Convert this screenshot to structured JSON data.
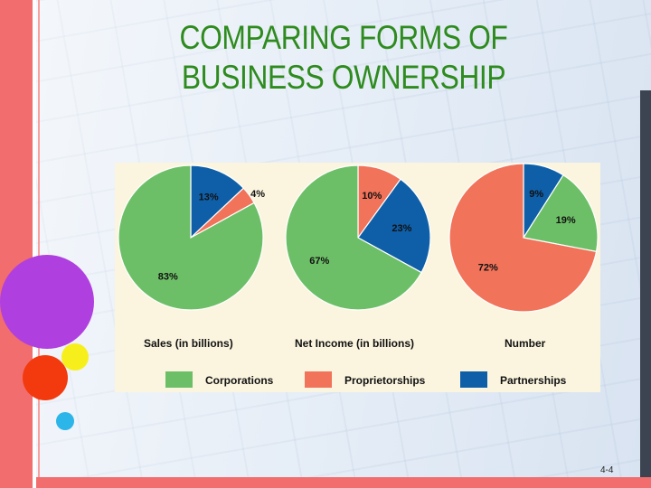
{
  "slide": {
    "title_line1": "COMPARING FORMS OF",
    "title_line2": "BUSINESS OWNERSHIP",
    "page_number": "4-4"
  },
  "colors": {
    "Corporations": "#6dbf67",
    "Proprietorships": "#f0735a",
    "Partnerships": "#0f5fa8",
    "chart_background": "#fbf5df",
    "title": "#2e8b1e"
  },
  "legend": [
    "Corporations",
    "Proprietorships",
    "Partnerships"
  ],
  "chart_data": [
    {
      "type": "pie",
      "title": "Sales (in billions)",
      "categories": [
        "Corporations",
        "Proprietorships",
        "Partnerships"
      ],
      "values": [
        83,
        4,
        13
      ],
      "labels": [
        "83%",
        "4%",
        "13%"
      ]
    },
    {
      "type": "pie",
      "title": "Net Income (in billions)",
      "categories": [
        "Corporations",
        "Proprietorships",
        "Partnerships"
      ],
      "values": [
        67,
        10,
        23
      ],
      "labels": [
        "67%",
        "10%",
        "23%"
      ]
    },
    {
      "type": "pie",
      "title": "Number",
      "categories": [
        "Corporations",
        "Proprietorships",
        "Partnerships"
      ],
      "values": [
        19,
        72,
        9
      ],
      "labels": [
        "19%",
        "72%",
        "9%"
      ]
    }
  ]
}
